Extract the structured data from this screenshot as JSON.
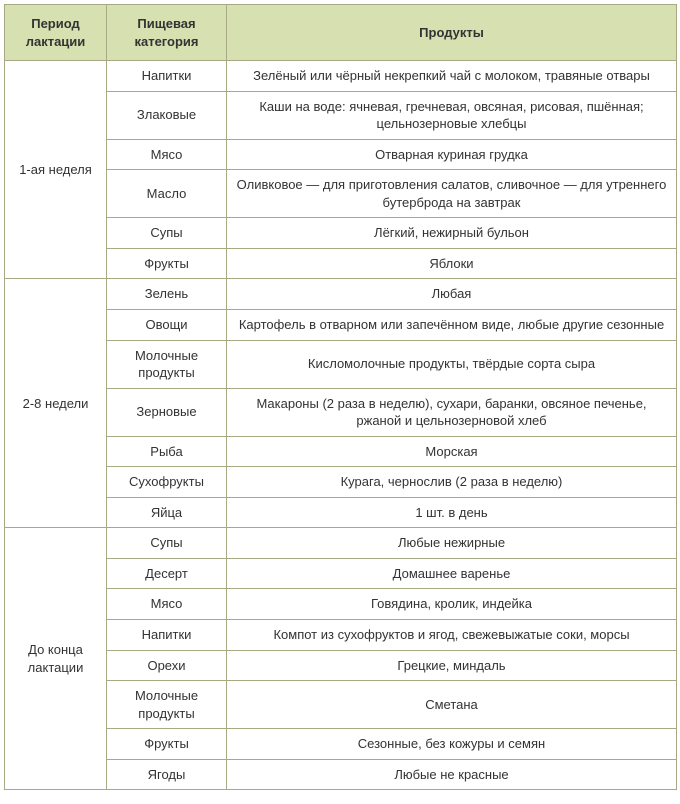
{
  "headers": {
    "period": "Период лактации",
    "category": "Пищевая категория",
    "products": "Продукты"
  },
  "sections": [
    {
      "period": "1-ая неделя",
      "rows": [
        {
          "category": "Напитки",
          "products": "Зелёный или чёрный некрепкий чай с молоком, травяные отвары"
        },
        {
          "category": "Злаковые",
          "products": "Каши на воде: ячневая, гречневая, овсяная, рисовая, пшённая; цельнозерновые хлебцы"
        },
        {
          "category": "Мясо",
          "products": "Отварная куриная грудка"
        },
        {
          "category": "Масло",
          "products": "Оливковое — для приготовления салатов, сливочное — для утреннего бутерброда на завтрак"
        },
        {
          "category": "Супы",
          "products": "Лёгкий, нежирный бульон"
        },
        {
          "category": "Фрукты",
          "products": "Яблоки"
        }
      ]
    },
    {
      "period": "2-8 недели",
      "rows": [
        {
          "category": "Зелень",
          "products": "Любая"
        },
        {
          "category": "Овощи",
          "products": "Картофель в отварном или запечённом виде, любые другие сезонные"
        },
        {
          "category": "Молочные продукты",
          "products": "Кисломолочные продукты, твёрдые сорта сыра"
        },
        {
          "category": "Зерновые",
          "products": "Макароны (2 раза в неделю), сухари, баранки, овсяное печенье, ржаной и цельнозерновой хлеб"
        },
        {
          "category": "Рыба",
          "products": "Морская"
        },
        {
          "category": "Сухофрукты",
          "products": "Курага, чернослив (2 раза в неделю)"
        },
        {
          "category": "Яйца",
          "products": "1 шт. в день"
        }
      ]
    },
    {
      "period": "До конца лактации",
      "rows": [
        {
          "category": "Супы",
          "products": "Любые нежирные"
        },
        {
          "category": "Десерт",
          "products": "Домашнее варенье"
        },
        {
          "category": "Мясо",
          "products": "Говядина, кролик, индейка"
        },
        {
          "category": "Напитки",
          "products": "Компот из сухофруктов и ягод, свежевыжатые соки, морсы"
        },
        {
          "category": "Орехи",
          "products": "Грецкие, миндаль"
        },
        {
          "category": "Молочные продукты",
          "products": "Сметана"
        },
        {
          "category": "Фрукты",
          "products": "Сезонные, без кожуры и семян"
        },
        {
          "category": "Ягоды",
          "products": "Любые не красные"
        }
      ]
    }
  ]
}
